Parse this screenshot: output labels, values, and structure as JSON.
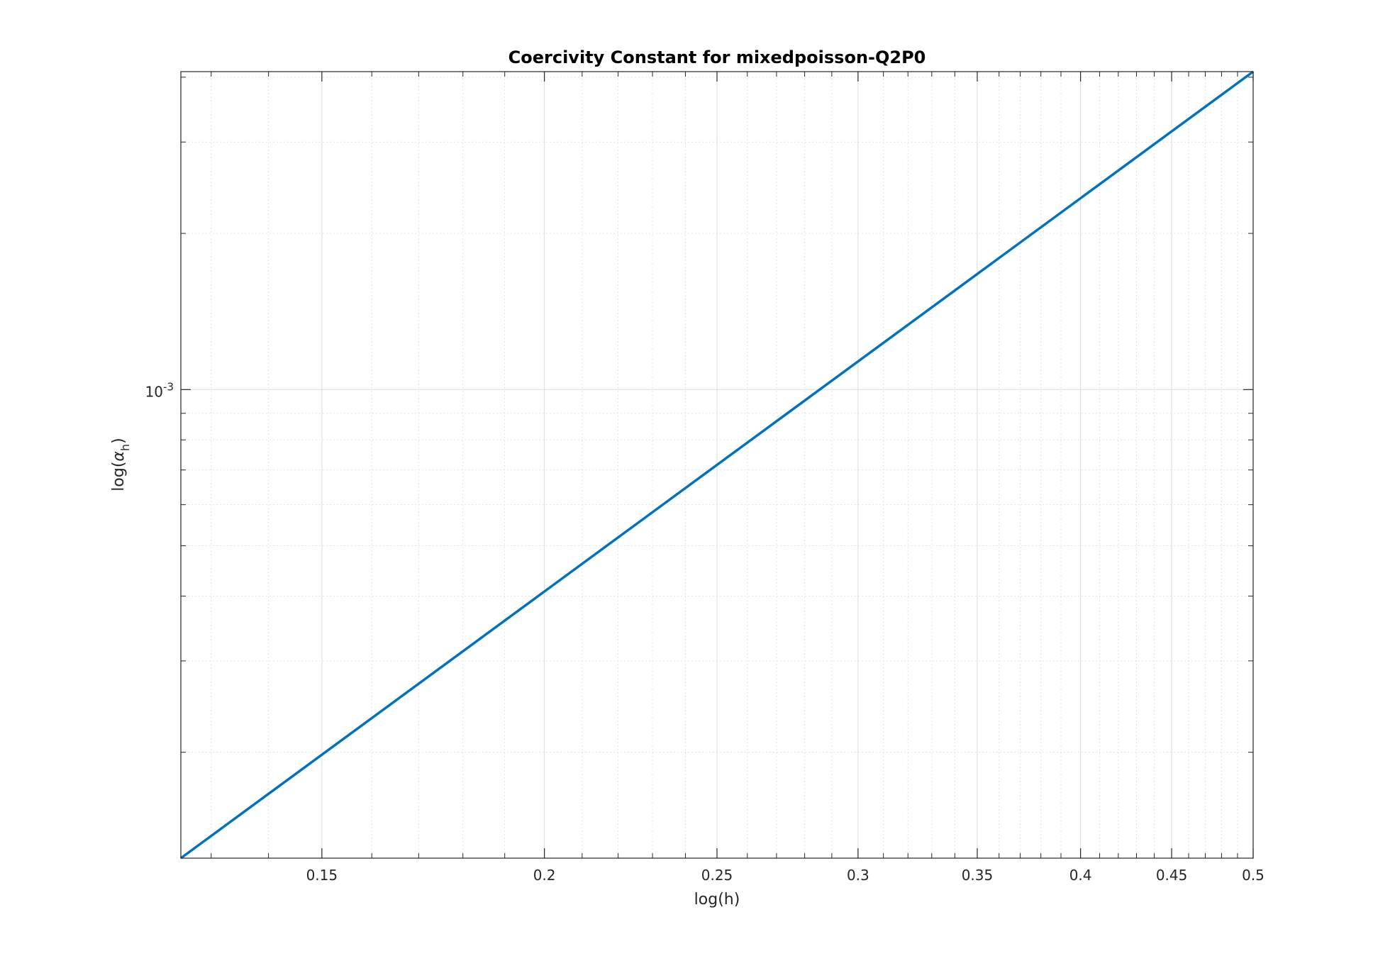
{
  "chart_data": {
    "type": "line",
    "title": "Coercivity Constant for mixedpoisson-Q2P0",
    "xlabel": "log(h)",
    "ylabel_prefix": "log(",
    "ylabel_symbol": "α",
    "ylabel_subscript": "h",
    "ylabel_suffix": ")",
    "xscale": "log",
    "yscale": "log",
    "xlim": [
      0.125,
      0.5
    ],
    "ylim": [
      0.000125,
      0.0041
    ],
    "grid": true,
    "minor_grid": true,
    "x_ticks": [
      0.15,
      0.2,
      0.25,
      0.3,
      0.35,
      0.4,
      0.45,
      0.5
    ],
    "x_tick_labels": [
      "0.15",
      "0.2",
      "0.25",
      "0.3",
      "0.35",
      "0.4",
      "0.45",
      "0.5"
    ],
    "y_ticks": [
      0.001
    ],
    "y_tick_label_base": "10",
    "y_tick_label_exponent": "-3",
    "series": [
      {
        "color": "#0072BD",
        "x": [
          0.125,
          0.5
        ],
        "y": [
          0.000125,
          0.0041
        ]
      }
    ]
  }
}
